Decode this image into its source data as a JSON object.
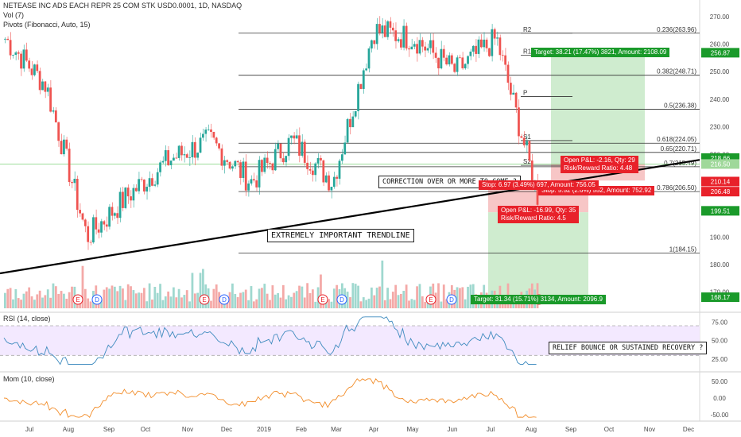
{
  "header": {
    "title": "NETEASE INC ADS EACH REPR 25 COM STK USD0.0001, 1D, NASDAQ",
    "vol": "Vol (7)",
    "pivots": "Pivots (Fibonacci, Auto, 15)"
  },
  "price_axis": [
    "270.00",
    "260.00",
    "250.00",
    "240.00",
    "230.00",
    "220.00",
    "210.00",
    "200.00",
    "190.00",
    "180.00",
    "170.00"
  ],
  "price_pills": [
    {
      "label": "256.87",
      "price": 256.87,
      "color": "#1a9a2a"
    },
    {
      "label": "218.66",
      "price": 218.66,
      "color": "#1a9a2a"
    },
    {
      "label": "216.50",
      "price": 216.5,
      "color": "#9fd89a"
    },
    {
      "label": "210.14",
      "price": 210.14,
      "color": "#e8212a"
    },
    {
      "label": "206.48",
      "price": 206.48,
      "color": "#e8212a"
    },
    {
      "label": "199.51",
      "price": 199.51,
      "color": "#1a9a2a"
    },
    {
      "label": "168.17",
      "price": 168.17,
      "color": "#1a9a2a"
    }
  ],
  "rsi": {
    "label": "RSI (14, close)",
    "ticks": [
      "75.00",
      "50.00",
      "25.00"
    ]
  },
  "mom": {
    "label": "Mom (10, close)",
    "ticks": [
      "50.00",
      "0.00",
      "-50.00"
    ]
  },
  "x_axis": [
    "Jul",
    "Aug",
    "Sep",
    "Oct",
    "Nov",
    "Dec",
    "2019",
    "Feb",
    "Mar",
    "Apr",
    "May",
    "Jun",
    "Jul",
    "Aug",
    "Sep",
    "Oct",
    "Nov",
    "Dec"
  ],
  "annotations": {
    "trendline": "EXTREMELY IMPORTANT TRENDLINE",
    "correction": "CORRECTION OVER OR MORE TO COME ?",
    "relief": "RELIEF BOUNCE OR SUSTAINED RECOVERY ?"
  },
  "positions": {
    "target1": "Target: 38.21 (17.47%) 3821, Amount: 2108.09",
    "pnl1_line1": "Open P&L: -2.16, Qty: 29",
    "pnl1_line2": "Risk/Reward Ratio: 4.48",
    "stop": "Stop: 6.97 (3.49%) 697, Amount: 756.05",
    "stop2": "Stop: 5.52 (2.6%) 552, Amount: 752.92",
    "pnl2_line1": "Open P&L: -16.99, Qty: 35",
    "pnl2_line2": "Risk/Reward Ratio: 4.5",
    "target2": "Target: 31.34 (15.71%) 3134, Amount: 2096.9"
  },
  "chart_data": {
    "type": "line",
    "title": "NETEASE INC ADS EACH REPR 25 COM STK USD0.0001, 1D, NASDAQ",
    "x": [
      "Jul",
      "Aug",
      "Sep",
      "Oct",
      "Nov",
      "Dec",
      "2019",
      "Feb",
      "Mar",
      "Apr",
      "May",
      "Jun",
      "Jul",
      "Aug"
    ],
    "series": [
      {
        "name": "",
        "values": [
          262,
          245,
          190,
          205,
          218,
          225,
          210,
          225,
          210,
          265,
          262,
          250,
          262,
          205
        ]
      }
    ],
    "ylim": [
      163,
      276
    ],
    "pivot_levels": [
      {
        "label": "R2",
        "price": 263.96
      },
      {
        "label": "R1",
        "price": 256.0
      },
      {
        "label": "P",
        "price": 241.0
      },
      {
        "label": "S1",
        "price": 225.0
      },
      {
        "label": "S2",
        "price": 216.0
      }
    ],
    "fib_levels": [
      {
        "label": "0.236(263.96)",
        "price": 263.96
      },
      {
        "label": "0.382(248.71)",
        "price": 248.71
      },
      {
        "label": "0.5(236.38)",
        "price": 236.38
      },
      {
        "label": "0.618(224.05)",
        "price": 224.05
      },
      {
        "label": "0.65(220.71)",
        "price": 220.71
      },
      {
        "label": "0.7(215.49)",
        "price": 215.49
      },
      {
        "label": "0.786(206.50)",
        "price": 206.5
      },
      {
        "label": "1(184.15)",
        "price": 184.15
      }
    ],
    "rsi_levels": [
      70,
      30
    ],
    "mom_zero": 0
  }
}
